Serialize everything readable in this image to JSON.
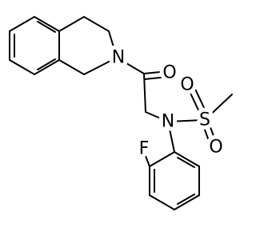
{
  "atoms": [
    {
      "label": "N"
    },
    {
      "label": "O"
    },
    {
      "label": "N"
    },
    {
      "label": "S"
    },
    {
      "label": "O"
    },
    {
      "label": "O"
    },
    {
      "label": "F"
    }
  ]
}
